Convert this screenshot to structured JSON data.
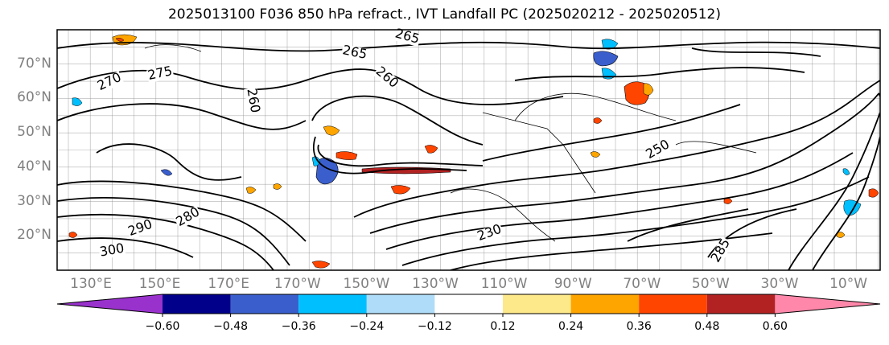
{
  "title": "2025013100 F036 850 hPa refract., IVT Landfall PC (2025020212 - 2025020512)",
  "map": {
    "lat_labels": [
      {
        "text": "70°N",
        "lat": 70
      },
      {
        "text": "60°N",
        "lat": 60
      },
      {
        "text": "50°N",
        "lat": 50
      },
      {
        "text": "40°N",
        "lat": 40
      },
      {
        "text": "30°N",
        "lat": 30
      },
      {
        "text": "20°N",
        "lat": 20
      }
    ],
    "lon_labels": [
      "130°E",
      "150°E",
      "170°E",
      "170°W",
      "150°W",
      "130°W",
      "110°W",
      "90°W",
      "70°W",
      "50°W",
      "30°W",
      "10°W"
    ],
    "lat_range": [
      10,
      80
    ],
    "contour_labels": [
      "265",
      "265",
      "275",
      "270",
      "260",
      "260",
      "280",
      "290",
      "300",
      "230",
      "285",
      "250"
    ],
    "feature_colors": {
      "land_outline": "#000000",
      "gridline": "#808080",
      "contour": "#000000"
    }
  },
  "colorbar": {
    "extend": "both",
    "colors": [
      "#9932cc",
      "#00008b",
      "#3a5fcd",
      "#00bfff",
      "#afdcf8",
      "#ffffff",
      "#fee98a",
      "#ffa500",
      "#ff4500",
      "#b22222",
      "#ff88aa"
    ],
    "tick_labels": [
      "−0.60",
      "−0.48",
      "−0.36",
      "−0.24",
      "−0.12",
      "0.12",
      "0.24",
      "0.36",
      "0.48",
      "0.60"
    ]
  }
}
